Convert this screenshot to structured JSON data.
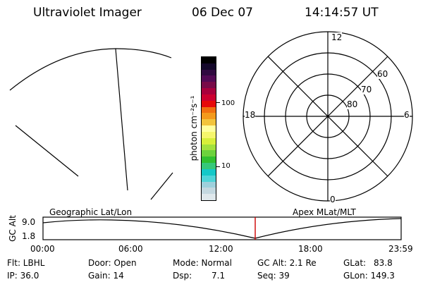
{
  "header": {
    "title": "Ultraviolet Imager",
    "date": "06 Dec 07",
    "time": "14:14:57 UT"
  },
  "colorbar": {
    "unit_label": "photon cm⁻²s⁻¹",
    "ticks": [
      "100",
      "10"
    ],
    "colors": [
      "#dfe8ec",
      "#c4d8e0",
      "#9ed0dc",
      "#4fd4d8",
      "#14c8c8",
      "#36c87a",
      "#30c030",
      "#6cd23c",
      "#a2e13e",
      "#d8ef3a",
      "#f6f66c",
      "#ffff9e",
      "#f2c43c",
      "#f39a1c",
      "#f07010",
      "#e60a0a",
      "#cc0030",
      "#a8003c",
      "#780a48",
      "#520a54",
      "#300a40",
      "#14082a",
      "#000000"
    ]
  },
  "polar_plot": {
    "mlt_labels": [
      "12",
      "18",
      "6",
      "0"
    ],
    "lat_labels": [
      "60",
      "70",
      "80"
    ]
  },
  "altitude_panel": {
    "y_axis_label": "GC Alt",
    "y_ticks": [
      "9.0",
      "1.8"
    ],
    "left_label": "Geographic Lat/Lon",
    "right_label": "Apex MLat/MLT",
    "x_ticks": [
      "00:00",
      "06:00",
      "12:00",
      "18:00",
      "23:59"
    ],
    "marker_color": "#cc0000"
  },
  "status": {
    "flt": "Flt: LBHL",
    "ip": "IP: 36.0",
    "door": "Door: Open",
    "gain": "Gain: 14",
    "mode": "Mode: Normal",
    "dsp": "Dsp:",
    "dsp_value": "7.1",
    "gc_alt": "GC Alt: 2.1 Re",
    "seq": "Seq: 39",
    "glat": "GLat:",
    "glat_value": "83.8",
    "glon": "GLon: 149.3"
  }
}
